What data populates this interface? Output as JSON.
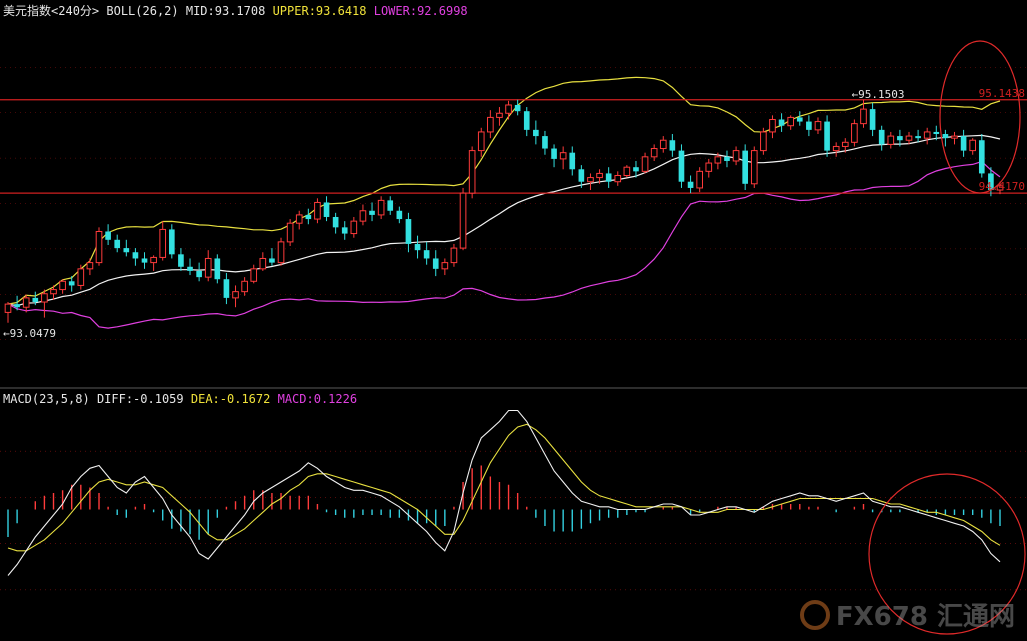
{
  "header": {
    "title": "美元指数",
    "period": "<240分>",
    "boll_label": "BOLL(26,2)",
    "mid": "MID:93.1708",
    "upper": "UPPER:93.6418",
    "lower": "LOWER:92.6998"
  },
  "macd_header": {
    "label": "MACD(23,5,8)",
    "diff": "DIFF:-0.1059",
    "dea": "DEA:-0.1672",
    "macd": "MACD:0.1226"
  },
  "annotations": {
    "high": "95.1503",
    "low": "93.0479",
    "upper_right": "95.1438",
    "lower_right": "94.4170"
  },
  "watermark": "FX678 汇通网",
  "colors": {
    "background": "#000000",
    "candle_up": "#ff3b3b",
    "candle_down": "#33e0e0",
    "mid": "#f2f2f2",
    "upper": "#e8e040",
    "lower": "#e040e0",
    "hline": "#d02020",
    "circle": "#e02a2a",
    "diff": "#f0f0f0",
    "dea": "#e8e040",
    "hist_pos": "#ff3b3b",
    "hist_neg": "#33d0e0",
    "grid": "#8a1010"
  },
  "chart_data": [
    {
      "type": "candlestick",
      "title": "美元指数<240分>",
      "indicator": "BOLL(26,2)",
      "ylim": [
        92.4,
        95.9
      ],
      "horizontal_lines": [
        95.15,
        94.25
      ],
      "ohlc": [
        [
          93.1,
          93.2,
          93.0,
          93.18
        ],
        [
          93.18,
          93.26,
          93.12,
          93.15
        ],
        [
          93.15,
          93.27,
          93.1,
          93.24
        ],
        [
          93.24,
          93.3,
          93.17,
          93.2
        ],
        [
          93.2,
          93.32,
          93.05,
          93.28
        ],
        [
          93.28,
          93.36,
          93.22,
          93.32
        ],
        [
          93.32,
          93.42,
          93.28,
          93.4
        ],
        [
          93.4,
          93.45,
          93.3,
          93.36
        ],
        [
          93.36,
          93.56,
          93.32,
          93.52
        ],
        [
          93.52,
          93.62,
          93.46,
          93.58
        ],
        [
          93.58,
          93.92,
          93.55,
          93.88
        ],
        [
          93.88,
          93.95,
          93.75,
          93.8
        ],
        [
          93.8,
          93.85,
          93.68,
          93.72
        ],
        [
          93.72,
          93.8,
          93.64,
          93.68
        ],
        [
          93.68,
          93.72,
          93.55,
          93.62
        ],
        [
          93.62,
          93.68,
          93.52,
          93.58
        ],
        [
          93.58,
          93.65,
          93.5,
          93.63
        ],
        [
          93.63,
          93.98,
          93.6,
          93.9
        ],
        [
          93.9,
          93.95,
          93.62,
          93.66
        ],
        [
          93.66,
          93.72,
          93.5,
          93.54
        ],
        [
          93.54,
          93.62,
          93.46,
          93.5
        ],
        [
          93.5,
          93.58,
          93.4,
          93.44
        ],
        [
          93.44,
          93.7,
          93.4,
          93.62
        ],
        [
          93.62,
          93.66,
          93.38,
          93.42
        ],
        [
          93.42,
          93.48,
          93.18,
          93.24
        ],
        [
          93.24,
          93.36,
          93.15,
          93.3
        ],
        [
          93.3,
          93.44,
          93.26,
          93.4
        ],
        [
          93.4,
          93.56,
          93.38,
          93.52
        ],
        [
          93.52,
          93.68,
          93.5,
          93.62
        ],
        [
          93.62,
          93.72,
          93.55,
          93.58
        ],
        [
          93.58,
          93.82,
          93.55,
          93.78
        ],
        [
          93.78,
          94.0,
          93.74,
          93.96
        ],
        [
          93.96,
          94.08,
          93.9,
          94.04
        ],
        [
          94.04,
          94.1,
          93.95,
          94.0
        ],
        [
          94.0,
          94.2,
          93.96,
          94.16
        ],
        [
          94.16,
          94.22,
          93.98,
          94.02
        ],
        [
          94.02,
          94.06,
          93.86,
          93.92
        ],
        [
          93.92,
          93.98,
          93.8,
          93.86
        ],
        [
          93.86,
          94.02,
          93.82,
          93.98
        ],
        [
          93.98,
          94.14,
          93.94,
          94.08
        ],
        [
          94.08,
          94.16,
          93.98,
          94.04
        ],
        [
          94.04,
          94.22,
          94.0,
          94.18
        ],
        [
          94.18,
          94.22,
          94.04,
          94.08
        ],
        [
          94.08,
          94.12,
          93.96,
          94.0
        ],
        [
          94.0,
          94.06,
          93.68,
          93.76
        ],
        [
          93.76,
          93.84,
          93.62,
          93.7
        ],
        [
          93.7,
          93.78,
          93.56,
          93.62
        ],
        [
          93.62,
          93.7,
          93.45,
          93.52
        ],
        [
          93.52,
          93.62,
          93.46,
          93.58
        ],
        [
          93.58,
          93.76,
          93.54,
          93.72
        ],
        [
          93.72,
          94.3,
          93.7,
          94.25
        ],
        [
          94.25,
          94.7,
          94.2,
          94.66
        ],
        [
          94.66,
          94.88,
          94.6,
          94.84
        ],
        [
          94.84,
          95.05,
          94.78,
          94.98
        ],
        [
          94.98,
          95.08,
          94.9,
          95.02
        ],
        [
          95.02,
          95.14,
          94.96,
          95.1
        ],
        [
          95.1,
          95.15,
          95.0,
          95.04
        ],
        [
          95.04,
          95.08,
          94.8,
          94.86
        ],
        [
          94.86,
          94.95,
          94.72,
          94.8
        ],
        [
          94.8,
          94.85,
          94.62,
          94.68
        ],
        [
          94.68,
          94.72,
          94.5,
          94.58
        ],
        [
          94.58,
          94.7,
          94.48,
          94.64
        ],
        [
          94.64,
          94.7,
          94.42,
          94.48
        ],
        [
          94.48,
          94.52,
          94.3,
          94.36
        ],
        [
          94.36,
          94.44,
          94.28,
          94.4
        ],
        [
          94.4,
          94.48,
          94.34,
          94.44
        ],
        [
          94.44,
          94.5,
          94.3,
          94.36
        ],
        [
          94.36,
          94.46,
          94.32,
          94.42
        ],
        [
          94.42,
          94.52,
          94.4,
          94.5
        ],
        [
          94.5,
          94.56,
          94.4,
          94.46
        ],
        [
          94.46,
          94.64,
          94.44,
          94.6
        ],
        [
          94.6,
          94.72,
          94.56,
          94.68
        ],
        [
          94.68,
          94.8,
          94.64,
          94.76
        ],
        [
          94.76,
          94.82,
          94.6,
          94.66
        ],
        [
          94.66,
          94.72,
          94.3,
          94.36
        ],
        [
          94.36,
          94.42,
          94.25,
          94.3
        ],
        [
          94.3,
          94.5,
          94.26,
          94.46
        ],
        [
          94.46,
          94.58,
          94.4,
          94.54
        ],
        [
          94.54,
          94.64,
          94.48,
          94.6
        ],
        [
          94.6,
          94.66,
          94.5,
          94.56
        ],
        [
          94.56,
          94.7,
          94.52,
          94.66
        ],
        [
          94.66,
          94.72,
          94.28,
          94.34
        ],
        [
          94.34,
          94.7,
          94.3,
          94.66
        ],
        [
          94.66,
          94.88,
          94.62,
          94.84
        ],
        [
          94.84,
          95.0,
          94.78,
          94.96
        ],
        [
          94.96,
          95.02,
          94.84,
          94.9
        ],
        [
          94.9,
          95.0,
          94.86,
          94.98
        ],
        [
          94.98,
          95.04,
          94.9,
          94.94
        ],
        [
          94.94,
          95.0,
          94.8,
          94.86
        ],
        [
          94.86,
          94.98,
          94.82,
          94.94
        ],
        [
          94.94,
          95.0,
          94.6,
          94.66
        ],
        [
          94.66,
          94.74,
          94.6,
          94.7
        ],
        [
          94.7,
          94.78,
          94.64,
          94.74
        ],
        [
          94.74,
          94.96,
          94.7,
          94.92
        ],
        [
          94.92,
          95.15,
          94.88,
          95.06
        ],
        [
          95.06,
          95.12,
          94.8,
          94.86
        ],
        [
          94.86,
          94.9,
          94.66,
          94.72
        ],
        [
          94.72,
          94.84,
          94.68,
          94.8
        ],
        [
          94.8,
          94.86,
          94.7,
          94.76
        ],
        [
          94.76,
          94.84,
          94.72,
          94.8
        ],
        [
          94.8,
          94.86,
          94.74,
          94.78
        ],
        [
          94.78,
          94.88,
          94.72,
          94.84
        ],
        [
          94.84,
          94.9,
          94.76,
          94.82
        ],
        [
          94.82,
          94.86,
          94.7,
          94.78
        ],
        [
          94.78,
          94.84,
          94.72,
          94.8
        ],
        [
          94.8,
          94.86,
          94.6,
          94.66
        ],
        [
          94.66,
          94.78,
          94.62,
          94.76
        ],
        [
          94.76,
          94.82,
          94.4,
          94.44
        ],
        [
          94.44,
          94.5,
          94.22,
          94.28
        ],
        [
          94.28,
          94.36,
          94.24,
          94.32
        ]
      ]
    },
    {
      "type": "macd",
      "title": "MACD(23,5,8)",
      "ylim": [
        -0.46,
        0.38
      ],
      "diff": [
        -0.24,
        -0.2,
        -0.15,
        -0.1,
        -0.06,
        -0.02,
        0.02,
        0.08,
        0.12,
        0.15,
        0.16,
        0.12,
        0.08,
        0.06,
        0.1,
        0.12,
        0.08,
        0.04,
        -0.02,
        -0.06,
        -0.1,
        -0.16,
        -0.18,
        -0.14,
        -0.1,
        -0.06,
        -0.02,
        0.03,
        0.06,
        0.08,
        0.1,
        0.12,
        0.14,
        0.17,
        0.15,
        0.12,
        0.1,
        0.08,
        0.07,
        0.07,
        0.06,
        0.05,
        0.03,
        0.01,
        -0.02,
        -0.05,
        -0.08,
        -0.12,
        -0.15,
        -0.08,
        0.06,
        0.18,
        0.26,
        0.29,
        0.32,
        0.36,
        0.36,
        0.32,
        0.26,
        0.2,
        0.14,
        0.1,
        0.06,
        0.03,
        0.02,
        0.01,
        0.01,
        0.0,
        0.0,
        0.0,
        0.0,
        0.01,
        0.02,
        0.02,
        0.01,
        -0.02,
        -0.02,
        -0.01,
        0.0,
        0.01,
        0.01,
        0.0,
        -0.01,
        0.01,
        0.03,
        0.04,
        0.05,
        0.06,
        0.05,
        0.05,
        0.04,
        0.03,
        0.04,
        0.05,
        0.06,
        0.03,
        0.02,
        0.01,
        0.01,
        0.0,
        -0.01,
        -0.02,
        -0.03,
        -0.04,
        -0.05,
        -0.06,
        -0.08,
        -0.11,
        -0.16,
        -0.19
      ],
      "dea": [
        -0.14,
        -0.15,
        -0.15,
        -0.13,
        -0.11,
        -0.08,
        -0.05,
        -0.01,
        0.03,
        0.07,
        0.1,
        0.11,
        0.1,
        0.09,
        0.09,
        0.1,
        0.09,
        0.08,
        0.05,
        0.02,
        -0.01,
        -0.05,
        -0.09,
        -0.11,
        -0.11,
        -0.09,
        -0.07,
        -0.04,
        -0.01,
        0.02,
        0.04,
        0.07,
        0.09,
        0.12,
        0.13,
        0.13,
        0.12,
        0.11,
        0.1,
        0.09,
        0.08,
        0.07,
        0.06,
        0.04,
        0.02,
        0.0,
        -0.03,
        -0.06,
        -0.09,
        -0.09,
        -0.04,
        0.03,
        0.1,
        0.17,
        0.22,
        0.27,
        0.3,
        0.31,
        0.29,
        0.26,
        0.22,
        0.18,
        0.14,
        0.1,
        0.07,
        0.05,
        0.04,
        0.03,
        0.02,
        0.01,
        0.01,
        0.01,
        0.01,
        0.01,
        0.01,
        0.0,
        -0.01,
        -0.01,
        -0.01,
        0.0,
        0.0,
        0.0,
        0.0,
        0.0,
        0.01,
        0.02,
        0.03,
        0.04,
        0.04,
        0.04,
        0.04,
        0.04,
        0.04,
        0.04,
        0.04,
        0.04,
        0.03,
        0.02,
        0.02,
        0.01,
        0.0,
        -0.01,
        -0.01,
        -0.02,
        -0.03,
        -0.04,
        -0.06,
        -0.08,
        -0.11,
        -0.13
      ],
      "histogram": [
        -0.1,
        -0.05,
        0.0,
        0.03,
        0.05,
        0.06,
        0.07,
        0.09,
        0.09,
        0.08,
        0.06,
        0.01,
        -0.02,
        -0.03,
        0.01,
        0.02,
        -0.01,
        -0.04,
        -0.07,
        -0.08,
        -0.09,
        -0.11,
        -0.09,
        -0.03,
        0.01,
        0.03,
        0.05,
        0.07,
        0.07,
        0.06,
        0.06,
        0.05,
        0.05,
        0.05,
        0.02,
        -0.01,
        -0.02,
        -0.03,
        -0.03,
        -0.02,
        -0.02,
        -0.02,
        -0.03,
        -0.03,
        -0.04,
        -0.05,
        -0.05,
        -0.06,
        -0.06,
        0.01,
        0.1,
        0.15,
        0.16,
        0.12,
        0.1,
        0.09,
        0.06,
        0.01,
        -0.03,
        -0.06,
        -0.08,
        -0.08,
        -0.08,
        -0.07,
        -0.05,
        -0.04,
        -0.03,
        -0.03,
        -0.02,
        -0.01,
        -0.01,
        0.0,
        0.01,
        0.01,
        0.0,
        -0.02,
        -0.01,
        0.0,
        0.01,
        0.01,
        0.01,
        0.0,
        -0.01,
        0.01,
        0.02,
        0.02,
        0.02,
        0.02,
        0.01,
        0.01,
        0.0,
        -0.01,
        0.0,
        0.01,
        0.02,
        -0.01,
        -0.01,
        -0.01,
        -0.01,
        0.0,
        -0.01,
        -0.01,
        -0.02,
        -0.02,
        -0.02,
        -0.02,
        -0.02,
        -0.03,
        -0.05,
        -0.06
      ]
    }
  ]
}
